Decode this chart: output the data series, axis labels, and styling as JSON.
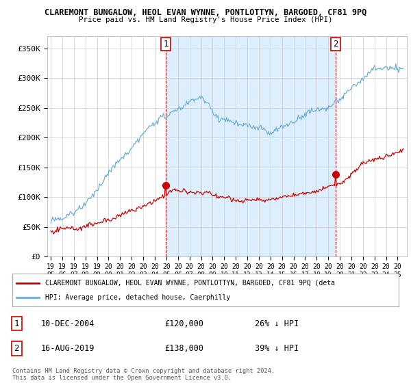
{
  "title": "CLAREMONT BUNGALOW, HEOL EVAN WYNNE, PONTLOTTYN, BARGOED, CF81 9PQ",
  "subtitle": "Price paid vs. HM Land Registry's House Price Index (HPI)",
  "ylabel_ticks": [
    "£0",
    "£50K",
    "£100K",
    "£150K",
    "£200K",
    "£250K",
    "£300K",
    "£350K"
  ],
  "ytick_values": [
    0,
    50000,
    100000,
    150000,
    200000,
    250000,
    300000,
    350000
  ],
  "ylim": [
    0,
    370000
  ],
  "hpi_color": "#6baed6",
  "price_color": "#cc0000",
  "fill_color": "#ddeeff",
  "ann1_x": 2004.95,
  "ann1_y": 120000,
  "ann2_x": 2019.62,
  "ann2_y": 138000,
  "legend_property_label": "CLAREMONT BUNGALOW, HEOL EVAN WYNNE, PONTLOTTYN, BARGOED, CF81 9PQ (deta",
  "legend_hpi_label": "HPI: Average price, detached house, Caerphilly",
  "table_rows": [
    {
      "num": "1",
      "date": "10-DEC-2004",
      "price": "£120,000",
      "pct": "26% ↓ HPI"
    },
    {
      "num": "2",
      "date": "16-AUG-2019",
      "price": "£138,000",
      "pct": "39% ↓ HPI"
    }
  ],
  "footer": "Contains HM Land Registry data © Crown copyright and database right 2024.\nThis data is licensed under the Open Government Licence v3.0.",
  "background_color": "#ffffff",
  "grid_color": "#cccccc",
  "xlim_left": 1994.7,
  "xlim_right": 2025.8
}
